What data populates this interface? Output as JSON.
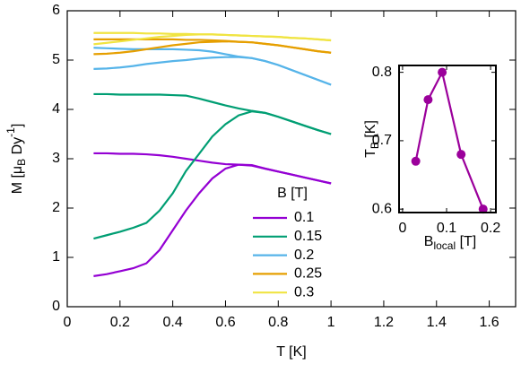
{
  "chart_data": [
    {
      "type": "line",
      "markers": false,
      "xlabel": "T [K]",
      "ylabel_parts": [
        "M [μ",
        "B",
        " Dy",
        "-1",
        "]"
      ],
      "legend_title": "B [T]",
      "x": [
        0.1,
        0.15,
        0.2,
        0.25,
        0.3,
        0.35,
        0.4,
        0.45,
        0.5,
        0.55,
        0.6,
        0.65,
        0.7,
        0.75,
        0.8,
        0.85,
        0.9,
        0.95,
        1.0
      ],
      "xlim": [
        0,
        1.7
      ],
      "xticks": [
        0,
        0.2,
        0.4,
        0.6,
        0.8,
        1,
        1.2,
        1.4,
        1.6
      ],
      "ylim": [
        0,
        6
      ],
      "yticks": [
        0,
        1,
        2,
        3,
        4,
        5,
        6
      ],
      "series": [
        {
          "name": "0.1",
          "color": "#9400d3",
          "values": [
            3.11,
            3.11,
            3.1,
            3.1,
            3.09,
            3.07,
            3.04,
            3.0,
            2.96,
            2.92,
            2.89,
            2.88,
            2.86,
            2.8,
            2.74,
            2.68,
            2.62,
            2.56,
            2.5
          ],
          "values_zfc": [
            0.62,
            0.66,
            0.72,
            0.78,
            0.88,
            1.15,
            1.55,
            1.95,
            2.3,
            2.6,
            2.8,
            2.88,
            2.87,
            2.8,
            2.74,
            2.68,
            2.62,
            2.56,
            2.5
          ]
        },
        {
          "name": "0.15",
          "color": "#009e73",
          "values": [
            4.31,
            4.31,
            4.3,
            4.3,
            4.3,
            4.3,
            4.29,
            4.28,
            4.22,
            4.15,
            4.08,
            4.02,
            3.97,
            3.93,
            3.85,
            3.76,
            3.67,
            3.58,
            3.5
          ],
          "values_zfc": [
            1.38,
            1.45,
            1.52,
            1.6,
            1.7,
            1.95,
            2.3,
            2.75,
            3.1,
            3.45,
            3.7,
            3.88,
            3.96,
            3.93,
            3.85,
            3.76,
            3.67,
            3.58,
            3.5
          ]
        },
        {
          "name": "0.2",
          "color": "#56b4e9",
          "values": [
            5.25,
            5.24,
            5.23,
            5.22,
            5.22,
            5.22,
            5.22,
            5.21,
            5.2,
            5.17,
            5.12,
            5.07,
            5.04,
            4.98,
            4.9,
            4.8,
            4.7,
            4.6,
            4.5
          ],
          "values_zfc": [
            4.82,
            4.83,
            4.85,
            4.88,
            4.92,
            4.95,
            4.98,
            5.0,
            5.03,
            5.05,
            5.06,
            5.06,
            5.04,
            4.98,
            4.9,
            4.8,
            4.7,
            4.6,
            4.5
          ]
        },
        {
          "name": "0.25",
          "color": "#e69f00",
          "values": [
            5.42,
            5.42,
            5.42,
            5.42,
            5.42,
            5.42,
            5.42,
            5.41,
            5.41,
            5.4,
            5.39,
            5.37,
            5.36,
            5.33,
            5.3,
            5.26,
            5.22,
            5.18,
            5.15
          ],
          "values_zfc": [
            5.12,
            5.13,
            5.15,
            5.18,
            5.22,
            5.26,
            5.3,
            5.33,
            5.36,
            5.37,
            5.38,
            5.37,
            5.36,
            5.33,
            5.3,
            5.26,
            5.22,
            5.18,
            5.15
          ]
        },
        {
          "name": "0.3",
          "color": "#f0e442",
          "values": [
            5.55,
            5.55,
            5.55,
            5.55,
            5.54,
            5.54,
            5.53,
            5.53,
            5.52,
            5.52,
            5.51,
            5.5,
            5.49,
            5.48,
            5.47,
            5.45,
            5.44,
            5.42,
            5.4
          ],
          "values_zfc": [
            5.32,
            5.35,
            5.38,
            5.41,
            5.44,
            5.47,
            5.49,
            5.51,
            5.52,
            5.52,
            5.51,
            5.5,
            5.49,
            5.48,
            5.47,
            5.45,
            5.44,
            5.42,
            5.4
          ]
        }
      ]
    },
    {
      "type": "line",
      "markers": true,
      "xlabel_parts": [
        "B",
        "local",
        " [T]"
      ],
      "ylabel_parts": [
        "T",
        "B",
        " [K]"
      ],
      "x": [
        0.03,
        0.058,
        0.09,
        0.133,
        0.183
      ],
      "xlim": [
        -0.008,
        0.212
      ],
      "xticks": [
        0,
        0.1,
        0.2
      ],
      "ylim": [
        0.595,
        0.81
      ],
      "yticks": [
        0.6,
        0.7,
        0.8
      ],
      "series": [
        {
          "color": "#9b009b",
          "values": [
            0.67,
            0.76,
            0.8,
            0.68,
            0.6
          ]
        }
      ]
    }
  ]
}
